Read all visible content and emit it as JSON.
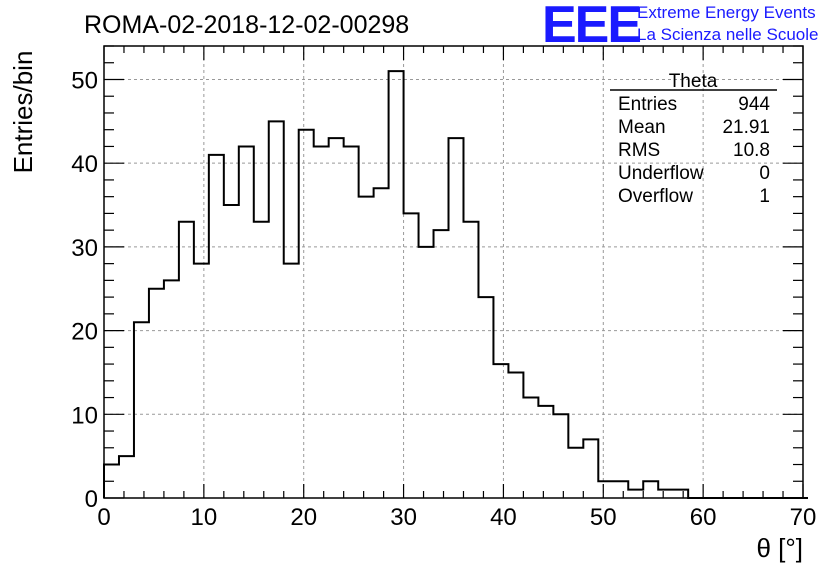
{
  "chart_data": {
    "type": "bar",
    "histogram": true,
    "title": "ROMA-02-2018-12-02-00298",
    "xlabel": "θ [°]",
    "ylabel": "Entries/bin",
    "xlim": [
      0,
      70
    ],
    "ylim": [
      0,
      54
    ],
    "bin_width": 1.5,
    "x_start": 0,
    "values": [
      4,
      5,
      21,
      25,
      26,
      33,
      28,
      41,
      35,
      42,
      33,
      45,
      28,
      44,
      42,
      43,
      42,
      36,
      37,
      51,
      34,
      30,
      32,
      43,
      33,
      24,
      16,
      15,
      12,
      11,
      10,
      6,
      7,
      2,
      2,
      1,
      2,
      1,
      1,
      0,
      0,
      0,
      0,
      0,
      0,
      0,
      0
    ],
    "xticks": [
      "0",
      "10",
      "20",
      "30",
      "40",
      "50",
      "60",
      "70"
    ],
    "yticks": [
      "0",
      "10",
      "20",
      "30",
      "40",
      "50"
    ],
    "grid": true,
    "line_color": "#000000"
  },
  "stats_box": {
    "title": "Theta",
    "rows": [
      {
        "label": "Entries",
        "value": "944"
      },
      {
        "label": "Mean",
        "value": "21.91"
      },
      {
        "label": "RMS",
        "value": "10.8"
      },
      {
        "label": "Underflow",
        "value": "0"
      },
      {
        "label": "Overflow",
        "value": "1"
      }
    ]
  },
  "logo": {
    "mark": "EEE",
    "line1": "Extreme Energy Events",
    "line2": "La Scienza nelle Scuole",
    "color": "#1a1aff"
  }
}
